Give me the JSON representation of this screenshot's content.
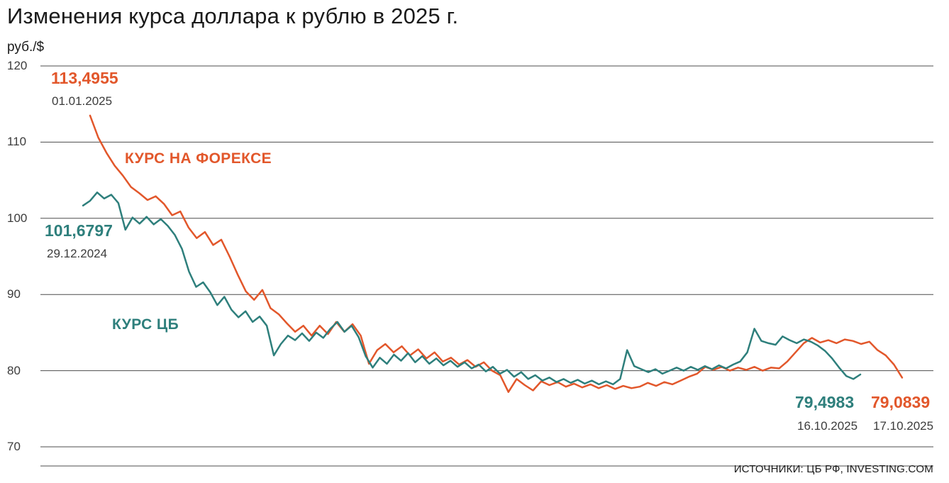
{
  "title": "Изменения курса доллара к рублю в 2025 г.",
  "y_axis_unit": "руб./$",
  "y_ticks": [
    120,
    110,
    100,
    90,
    80,
    70
  ],
  "source": "ИСТОЧНИКИ: ЦБ РФ, INVESTING.COM",
  "colors": {
    "forex": "#e2572b",
    "cb": "#2e7f7c",
    "grid": "#4d4d4d",
    "text": "#1a1a1a"
  },
  "annotations": {
    "forex_start": {
      "value": "113,4955",
      "date": "01.01.2025"
    },
    "cb_start": {
      "value": "101,6797",
      "date": "29.12.2024"
    },
    "cb_end": {
      "value": "79,4983",
      "date": "16.10.2025"
    },
    "forex_end": {
      "value": "79,0839",
      "date": "17.10.2025"
    },
    "forex_label": "КУРС НА ФОРЕКСЕ",
    "cb_label": "КУРС ЦБ"
  },
  "chart_data": {
    "type": "line",
    "title": "Изменения курса доллара к рублю в 2025 г.",
    "ylabel": "руб./$",
    "ylim": [
      70,
      120
    ],
    "yticks": [
      70,
      80,
      90,
      100,
      110,
      120
    ],
    "grid": "horizontal",
    "x_range": [
      "29.12.2024",
      "17.10.2025"
    ],
    "series": [
      {
        "key": "forex",
        "name": "КУРС НА ФОРЕКСЕ",
        "color": "#e2572b",
        "start": {
          "date": "01.01.2025",
          "value": 113.4955
        },
        "end": {
          "date": "17.10.2025",
          "value": 79.0839
        },
        "t_start": 0.0556,
        "t_end": 0.965,
        "values": [
          113.4955,
          110.6,
          108.6,
          106.9,
          105.6,
          104.1,
          103.3,
          102.4,
          102.9,
          101.9,
          100.4,
          100.9,
          98.8,
          97.4,
          98.2,
          96.5,
          97.2,
          95.0,
          92.6,
          90.4,
          89.3,
          90.6,
          88.2,
          87.4,
          86.2,
          85.1,
          85.9,
          84.6,
          85.9,
          84.8,
          86.4,
          85.1,
          86.1,
          84.6,
          80.9,
          82.7,
          83.5,
          82.4,
          83.2,
          82.0,
          82.8,
          81.6,
          82.4,
          81.2,
          81.7,
          80.8,
          81.4,
          80.5,
          81.1,
          80.0,
          79.4,
          77.2,
          78.9,
          78.1,
          77.4,
          78.6,
          78.1,
          78.5,
          77.9,
          78.3,
          77.8,
          78.2,
          77.7,
          78.1,
          77.6,
          78.0,
          77.7,
          77.9,
          78.4,
          78.0,
          78.5,
          78.2,
          78.7,
          79.2,
          79.6,
          80.5,
          80.1,
          80.5,
          80.0,
          80.4,
          80.1,
          80.5,
          80.0,
          80.4,
          80.3,
          81.2,
          82.4,
          83.6,
          84.3,
          83.7,
          84.0,
          83.6,
          84.1,
          83.9,
          83.5,
          83.8,
          82.7,
          82.0,
          80.8,
          79.0839
        ]
      },
      {
        "key": "cb",
        "name": "КУРС ЦБ",
        "color": "#2e7f7c",
        "start": {
          "date": "29.12.2024",
          "value": 101.6797
        },
        "end": {
          "date": "16.10.2025",
          "value": 79.4983
        },
        "t_start": 0.0477,
        "t_end": 0.9182,
        "values": [
          101.6797,
          102.3,
          103.4,
          102.6,
          103.1,
          102.0,
          98.5,
          100.1,
          99.3,
          100.2,
          99.2,
          99.9,
          99.0,
          97.8,
          96.0,
          93.0,
          91.0,
          91.6,
          90.3,
          88.6,
          89.7,
          88.0,
          87.0,
          87.8,
          86.4,
          87.1,
          85.9,
          82.0,
          83.5,
          84.6,
          84.0,
          84.9,
          83.9,
          85.0,
          84.3,
          85.5,
          86.4,
          85.1,
          85.9,
          84.4,
          81.9,
          80.4,
          81.7,
          80.9,
          82.1,
          81.3,
          82.3,
          81.1,
          81.9,
          80.9,
          81.6,
          80.7,
          81.3,
          80.5,
          81.1,
          80.3,
          80.8,
          79.9,
          80.5,
          79.6,
          80.1,
          79.2,
          79.8,
          78.9,
          79.4,
          78.7,
          79.1,
          78.5,
          78.9,
          78.4,
          78.8,
          78.3,
          78.7,
          78.2,
          78.6,
          78.2,
          78.9,
          82.7,
          80.6,
          80.2,
          79.8,
          80.2,
          79.6,
          80.0,
          80.4,
          80.0,
          80.5,
          80.1,
          80.6,
          80.2,
          80.7,
          80.3,
          80.8,
          81.2,
          82.4,
          85.5,
          83.9,
          83.6,
          83.4,
          84.5,
          84.0,
          83.6,
          84.1,
          83.8,
          83.3,
          82.6,
          81.6,
          80.4,
          79.3,
          78.9,
          79.4983
        ]
      }
    ]
  }
}
